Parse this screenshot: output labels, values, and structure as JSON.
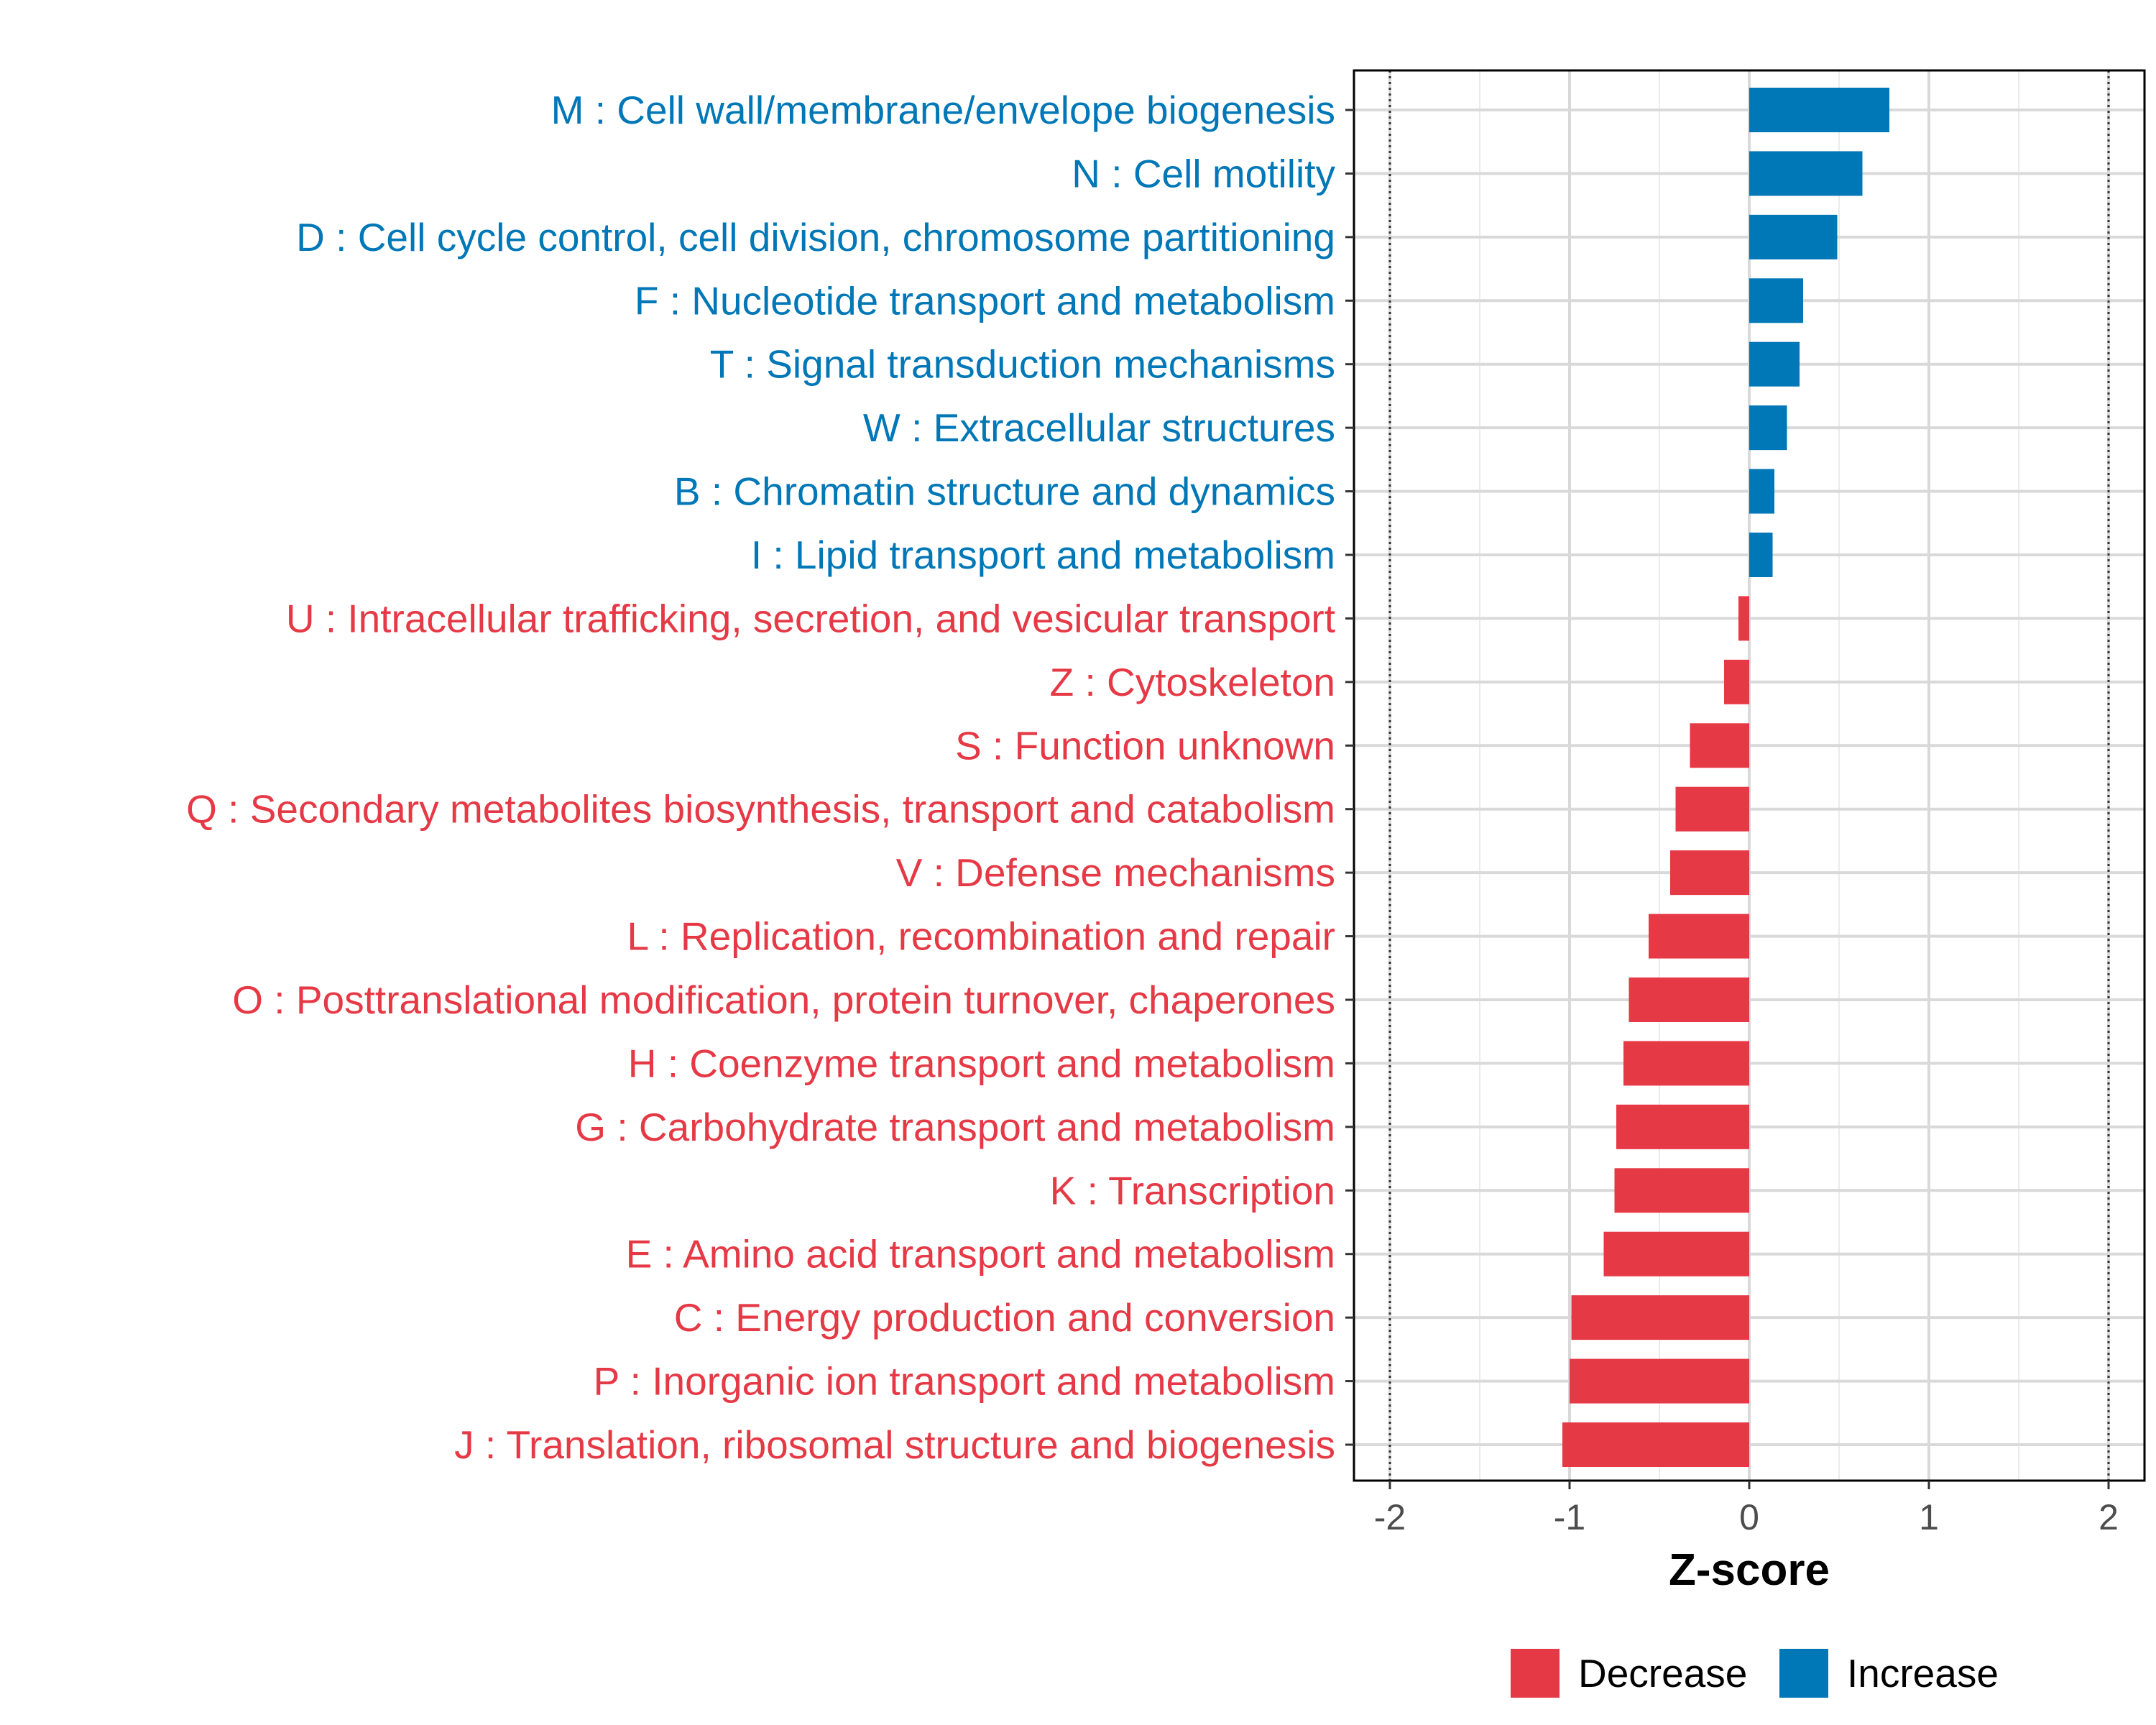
{
  "chart_data": {
    "type": "bar",
    "orientation": "horizontal",
    "title": "",
    "xlabel": "Z-score",
    "ylabel": "",
    "xlim": [
      -2.2,
      2.2
    ],
    "xticks": [
      -2,
      -1,
      0,
      1,
      2
    ],
    "xtick_labels": [
      "-2",
      "-1",
      "0",
      "1",
      "2"
    ],
    "reference_lines": [
      -2,
      2
    ],
    "grid": true,
    "colors": {
      "Decrease": "#e63946",
      "Increase": "#0077b6"
    },
    "categories": [
      "M : Cell wall/membrane/envelope biogenesis",
      "N : Cell motility",
      "D : Cell cycle control, cell division, chromosome partitioning",
      "F : Nucleotide transport and metabolism",
      "T : Signal transduction mechanisms",
      "W : Extracellular structures",
      "B : Chromatin structure and dynamics",
      "I : Lipid transport and metabolism",
      "U : Intracellular trafficking, secretion, and vesicular transport",
      "Z : Cytoskeleton",
      "S : Function unknown",
      "Q : Secondary metabolites biosynthesis, transport and catabolism",
      "V : Defense mechanisms",
      "L : Replication, recombination and repair",
      "O : Posttranslational modification, protein turnover, chaperones",
      "H : Coenzyme transport and metabolism",
      "G : Carbohydrate transport and metabolism",
      "K : Transcription",
      "E : Amino acid transport and metabolism",
      "C : Energy production and conversion",
      "P : Inorganic ion transport and metabolism",
      "J : Translation, ribosomal structure and biogenesis"
    ],
    "values": [
      0.78,
      0.63,
      0.49,
      0.3,
      0.28,
      0.21,
      0.14,
      0.13,
      -0.06,
      -0.14,
      -0.33,
      -0.41,
      -0.44,
      -0.56,
      -0.67,
      -0.7,
      -0.74,
      -0.75,
      -0.81,
      -0.99,
      -1.0,
      -1.04
    ],
    "groups": [
      "Increase",
      "Increase",
      "Increase",
      "Increase",
      "Increase",
      "Increase",
      "Increase",
      "Increase",
      "Decrease",
      "Decrease",
      "Decrease",
      "Decrease",
      "Decrease",
      "Decrease",
      "Decrease",
      "Decrease",
      "Decrease",
      "Decrease",
      "Decrease",
      "Decrease",
      "Decrease",
      "Decrease"
    ],
    "legend": {
      "position": "bottom",
      "entries": [
        {
          "label": "Decrease",
          "color": "#e63946"
        },
        {
          "label": "Increase",
          "color": "#0077b6"
        }
      ]
    }
  }
}
